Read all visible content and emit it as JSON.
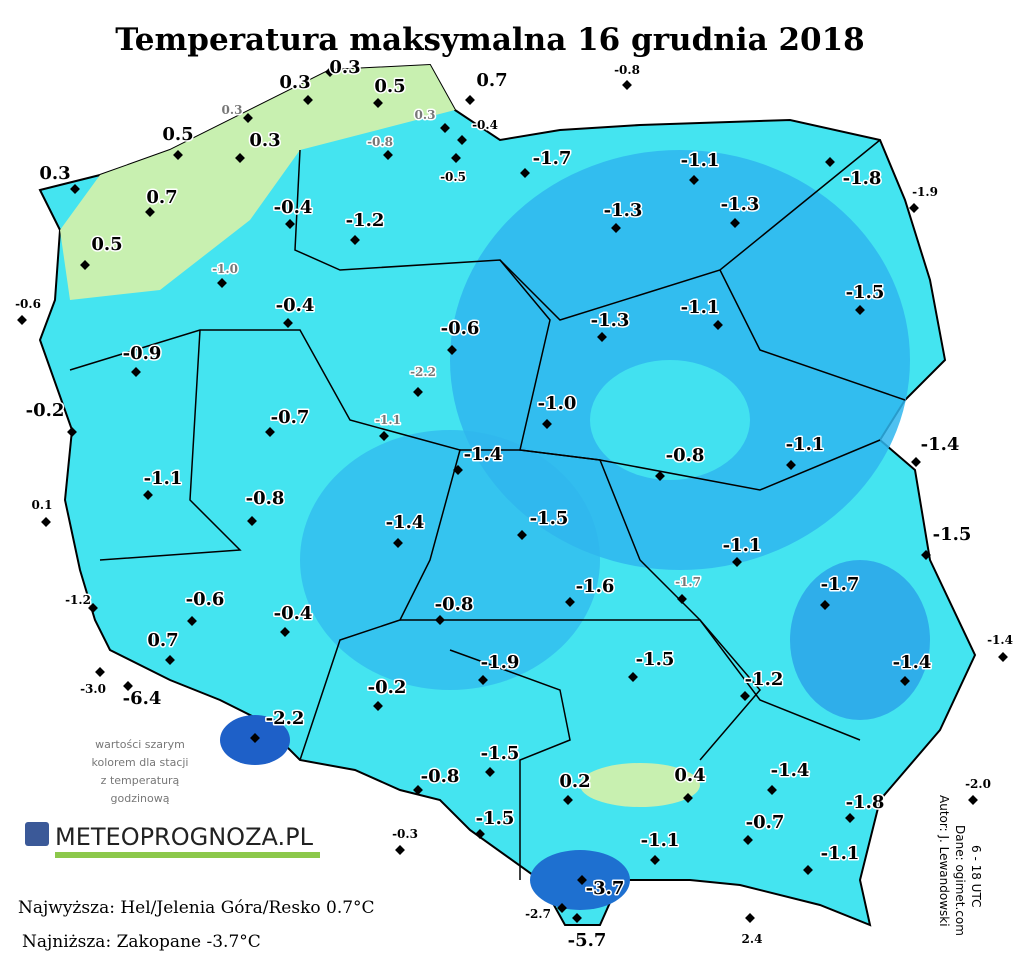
{
  "title": "Temperatura maksymalna 16 grudnia 2018",
  "stations": [
    "0.3",
    "0.3",
    "0.5",
    "0.7",
    "-0.8",
    "0.3",
    "0.3",
    "0.5",
    "0.3",
    "-0.8",
    "-0.4",
    "-0.5",
    "-1.7",
    "-1.1",
    "-1.8",
    "-1.9",
    "0.3",
    "0.7",
    "-0.4",
    "-1.2",
    "-1.3",
    "-1.3",
    "0.5",
    "-1.0",
    "-1.5",
    "-0.6",
    "-0.4",
    "-1.3",
    "-1.1",
    "-0.6",
    "-0.9",
    "-2.2",
    "-0.2",
    "-1.0",
    "-0.7",
    "-1.1",
    "-1.1",
    "-1.4",
    "-1.4",
    "-0.8",
    "-1.1",
    "0.1",
    "-0.8",
    "-1.4",
    "-1.5",
    "-1.5",
    "-1.1",
    "-1.7",
    "-1.6",
    "-1.7",
    "-1.2",
    "-0.6",
    "-0.4",
    "-0.8",
    "-1.4",
    "0.7",
    "-1.5",
    "-1.9",
    "-1.4",
    "-1.2",
    "-0.2",
    "-3.0",
    "-6.4",
    "-2.2",
    "-1.5",
    "-1.4",
    "-0.8",
    "0.2",
    "0.4",
    "-2.0",
    "-1.8",
    "-1.5",
    "-0.7",
    "-1.1",
    "-0.3",
    "-1.1",
    "-3.7",
    "-2.7",
    "-5.7",
    "2.4"
  ],
  "note": [
    "wartości szarym",
    "kolorem dla stacji",
    "z temperaturą",
    "godzinową"
  ],
  "logo": "METEOPROGNOZA.PL",
  "footer": [
    "Najwyższa: Hel/Jelenia Góra/Resko 0.7°C",
    "Najniższa: Zakopane  -3.7°C"
  ],
  "credits": [
    "Autor: J. Lewandowski",
    "Dane: ogimet.com",
    "6 - 18 UTC"
  ]
}
